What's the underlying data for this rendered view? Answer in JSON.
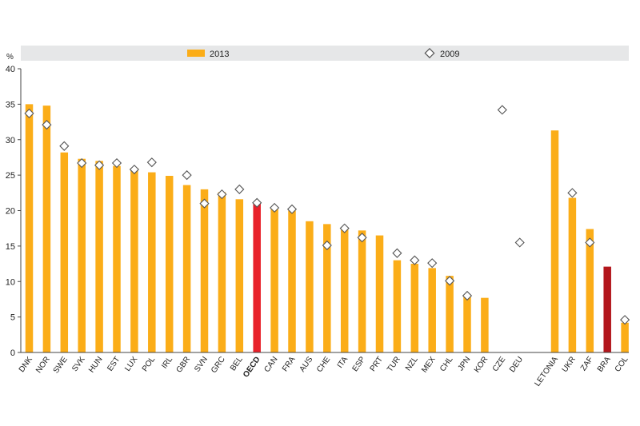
{
  "chart_data": {
    "type": "bar",
    "ylabel": "%",
    "ylim": [
      0,
      40
    ],
    "yticks": [
      0,
      5,
      10,
      15,
      20,
      25,
      30,
      35,
      40
    ],
    "grid": false,
    "legend_position": "top",
    "categories": [
      "DNK",
      "NOR",
      "SWE",
      "SVK",
      "HUN",
      "EST",
      "LUX",
      "POL",
      "IRL",
      "GBR",
      "SVN",
      "GRC",
      "BEL",
      "OECD",
      "CAN",
      "FRA",
      "AUS",
      "CHE",
      "ITA",
      "ESP",
      "PRT",
      "TUR",
      "NZL",
      "MEX",
      "CHL",
      "JPN",
      "KOR",
      "CZE",
      "DEU",
      "",
      "LETONIA",
      "UKR",
      "ZAF",
      "BRA",
      "COL"
    ],
    "series": [
      {
        "name": "2013",
        "type": "bar",
        "values": [
          35.0,
          34.8,
          28.2,
          27.3,
          27.0,
          26.3,
          26.0,
          25.4,
          24.9,
          23.6,
          23.0,
          22.6,
          21.6,
          21.2,
          20.2,
          20.0,
          18.5,
          18.1,
          17.3,
          17.2,
          16.5,
          13.0,
          12.5,
          11.9,
          10.8,
          8.1,
          7.7,
          null,
          null,
          null,
          31.3,
          21.8,
          17.4,
          12.1,
          4.2
        ]
      },
      {
        "name": "2009",
        "type": "marker",
        "values": [
          33.7,
          32.1,
          29.1,
          26.7,
          26.4,
          26.7,
          25.8,
          26.8,
          null,
          25.0,
          21.0,
          22.3,
          23.0,
          21.1,
          20.4,
          20.2,
          null,
          15.1,
          17.5,
          16.2,
          null,
          14.0,
          13.0,
          12.6,
          10.1,
          8.0,
          null,
          34.2,
          15.5,
          null,
          null,
          22.5,
          15.5,
          null,
          4.6
        ]
      }
    ],
    "colors": {
      "bar": "#fbad18",
      "oecd_bar": "#e8212a",
      "brazil_bar": "#b3161c",
      "marker_fill": "#ffffff",
      "marker_stroke": "#555555",
      "legend_band": "#e6e7e8",
      "axis": "#444444"
    },
    "highlight": {
      "OECD": "oecd_bar",
      "BRA": "brazil_bar"
    },
    "bold_categories": [
      "OECD"
    ]
  }
}
